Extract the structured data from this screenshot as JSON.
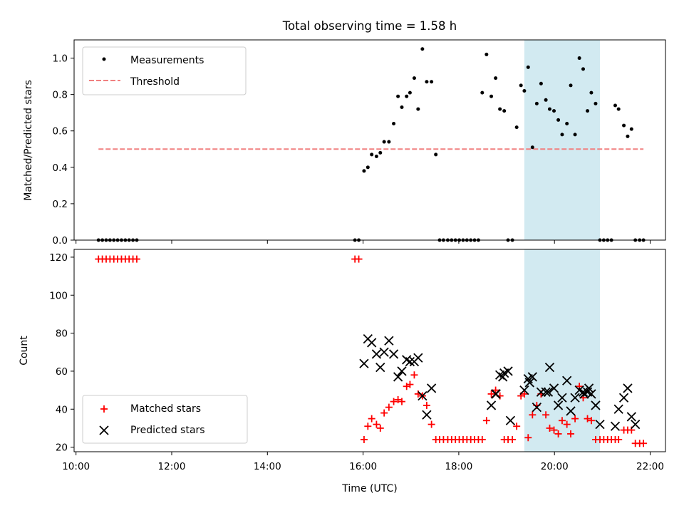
{
  "chart_data": [
    {
      "type": "scatter",
      "title": "Total observing time = 1.58 h",
      "ylabel": "Matched/Predicted stars",
      "ylim": [
        0,
        1.1
      ],
      "yticks": [
        0.0,
        0.2,
        0.4,
        0.6,
        0.8,
        1.0
      ],
      "ytick_labels": [
        "0.0",
        "0.2",
        "0.4",
        "0.6",
        "0.8",
        "1.0"
      ],
      "x_range_hours": [
        9.96,
        22.32
      ],
      "legend_position": "upper left",
      "series": [
        {
          "name": "Measurements",
          "marker": "dot",
          "color": "#000000",
          "x": [
            10.47,
            10.55,
            10.63,
            10.71,
            10.79,
            10.87,
            10.95,
            11.03,
            11.11,
            11.19,
            11.27,
            15.83,
            15.91,
            16.02,
            16.1,
            16.18,
            16.28,
            16.36,
            16.44,
            16.54,
            16.64,
            16.73,
            16.81,
            16.91,
            16.98,
            17.07,
            17.15,
            17.24,
            17.33,
            17.43,
            17.52,
            17.6,
            17.68,
            17.77,
            17.85,
            17.93,
            18.01,
            18.09,
            18.17,
            18.25,
            18.33,
            18.41,
            18.49,
            18.58,
            18.68,
            18.77,
            18.86,
            18.95,
            19.03,
            19.12,
            19.21,
            19.3,
            19.37,
            19.45,
            19.54,
            19.63,
            19.72,
            19.82,
            19.9,
            19.99,
            20.08,
            20.16,
            20.26,
            20.34,
            20.43,
            20.52,
            20.6,
            20.69,
            20.77,
            20.86,
            20.95,
            21.03,
            21.11,
            21.19,
            21.27,
            21.34,
            21.45,
            21.53,
            21.61,
            21.69,
            21.78,
            21.86
          ],
          "y": [
            0,
            0,
            0,
            0,
            0,
            0,
            0,
            0,
            0,
            0,
            0,
            0,
            0,
            0.38,
            0.4,
            0.47,
            0.46,
            0.48,
            0.54,
            0.54,
            0.64,
            0.79,
            0.73,
            0.79,
            0.81,
            0.89,
            0.72,
            1.05,
            0.87,
            0.87,
            0.47,
            0,
            0,
            0,
            0,
            0,
            0,
            0,
            0,
            0,
            0,
            0,
            0.81,
            1.02,
            0.79,
            0.89,
            0.72,
            0.71,
            0,
            0,
            0.62,
            0.85,
            0.82,
            0.95,
            0.51,
            0.75,
            0.86,
            0.77,
            0.72,
            0.71,
            0.66,
            0.58,
            0.64,
            0.85,
            0.58,
            1.0,
            0.94,
            0.71,
            0.81,
            0.75,
            0,
            0,
            0,
            0,
            0.74,
            0.72,
            0.63,
            0.57,
            0.61,
            0,
            0,
            0
          ]
        },
        {
          "name": "Threshold",
          "marker": "dashed-line",
          "color": "#f08080",
          "x": [
            10.47,
            21.86
          ],
          "y": [
            0.5,
            0.5
          ]
        }
      ],
      "shaded_span_hours": [
        19.37,
        20.95
      ]
    },
    {
      "type": "scatter",
      "ylabel": "Count",
      "xlabel": "Time (UTC)",
      "ylim": [
        17.6,
        124.1
      ],
      "yticks": [
        20,
        40,
        60,
        80,
        100,
        120
      ],
      "ytick_labels": [
        "20",
        "40",
        "60",
        "80",
        "100",
        "120"
      ],
      "xticks_hours": [
        10,
        12,
        14,
        16,
        18,
        20,
        22
      ],
      "xtick_labels": [
        "10:00",
        "12:00",
        "14:00",
        "16:00",
        "18:00",
        "20:00",
        "22:00"
      ],
      "x_range_hours": [
        9.96,
        22.32
      ],
      "legend_position": "lower left",
      "series": [
        {
          "name": "Matched stars",
          "marker": "plus",
          "color": "#ff0000",
          "x": [
            10.47,
            10.55,
            10.63,
            10.71,
            10.79,
            10.87,
            10.95,
            11.03,
            11.11,
            11.19,
            11.27,
            15.83,
            15.91,
            16.02,
            16.1,
            16.18,
            16.28,
            16.36,
            16.44,
            16.54,
            16.64,
            16.73,
            16.81,
            16.91,
            16.98,
            17.07,
            17.15,
            17.24,
            17.33,
            17.43,
            17.52,
            17.6,
            17.68,
            17.77,
            17.85,
            17.93,
            18.01,
            18.09,
            18.17,
            18.25,
            18.33,
            18.41,
            18.49,
            18.58,
            18.68,
            18.77,
            18.86,
            18.95,
            19.03,
            19.12,
            19.21,
            19.3,
            19.37,
            19.45,
            19.54,
            19.63,
            19.72,
            19.82,
            19.9,
            19.99,
            20.08,
            20.16,
            20.26,
            20.34,
            20.43,
            20.52,
            20.6,
            20.69,
            20.77,
            20.86,
            20.95,
            21.03,
            21.11,
            21.19,
            21.27,
            21.34,
            21.45,
            21.53,
            21.61,
            21.69,
            21.78,
            21.86
          ],
          "y": [
            119,
            119,
            119,
            119,
            119,
            119,
            119,
            119,
            119,
            119,
            119,
            119,
            119,
            24,
            31,
            35,
            32,
            30,
            38,
            41,
            44,
            45,
            44,
            52,
            53,
            58,
            48,
            47,
            42,
            32,
            24,
            24,
            24,
            24,
            24,
            24,
            24,
            24,
            24,
            24,
            24,
            24,
            24,
            34,
            48,
            50,
            47,
            24,
            24,
            24,
            31,
            47,
            48,
            25,
            37,
            42,
            48,
            37,
            30,
            29,
            27,
            34,
            32,
            27,
            35,
            52,
            46,
            35,
            34,
            24,
            24,
            24,
            24,
            24,
            24,
            24,
            29,
            29,
            29,
            22,
            22,
            22
          ]
        },
        {
          "name": "Predicted stars",
          "marker": "x",
          "color": "#000000",
          "x": [
            16.02,
            16.1,
            16.18,
            16.28,
            16.36,
            16.44,
            16.54,
            16.64,
            16.73,
            16.81,
            16.91,
            16.98,
            17.07,
            17.15,
            17.24,
            17.33,
            17.43,
            18.68,
            18.77,
            18.86,
            18.95,
            19.03,
            19.37,
            19.45,
            19.54,
            19.63,
            19.72,
            19.82,
            19.9,
            19.99,
            20.08,
            20.16,
            20.26,
            20.34,
            20.43,
            20.52,
            20.6,
            20.69,
            20.77,
            20.86,
            20.95,
            21.34,
            21.45,
            21.53,
            21.61,
            21.69,
            18.78,
            18.92,
            19.08,
            19.48,
            19.87,
            20.62,
            20.72,
            21.27
          ],
          "y": [
            64,
            77,
            75,
            69,
            62,
            70,
            76,
            69,
            57,
            60,
            66,
            65,
            65,
            67,
            47,
            37,
            51,
            42,
            48,
            58,
            59,
            60,
            50,
            56,
            57,
            41,
            49,
            49,
            62,
            51,
            42,
            46,
            55,
            39,
            46,
            50,
            49,
            49,
            48,
            42,
            32,
            40,
            46,
            51,
            36,
            32,
            48,
            57,
            34,
            54,
            49,
            48,
            51,
            31
          ]
        }
      ],
      "shaded_span_hours": [
        19.37,
        20.95
      ]
    }
  ]
}
